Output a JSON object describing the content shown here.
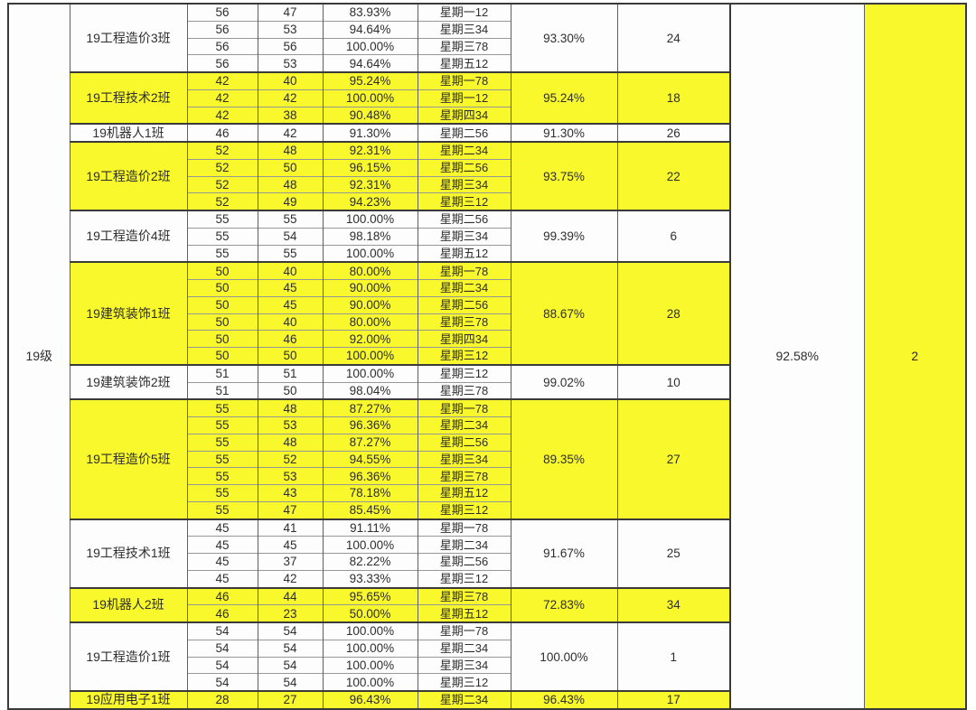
{
  "table": {
    "grade_label": "19级",
    "overall": {
      "percent": "92.58%",
      "rank": "2"
    },
    "colors": {
      "highlight": "#f8f82c",
      "cell_white": "#fdfdfd",
      "grid_major": "#3a3a3a",
      "grid_minor": "#979797"
    },
    "groups": [
      {
        "name": "19工程造价3班",
        "highlight": false,
        "avg": "93.30%",
        "count": "24",
        "rows": [
          {
            "total": "56",
            "present": "47",
            "rate": "83.93%",
            "session": "星期一12"
          },
          {
            "total": "56",
            "present": "53",
            "rate": "94.64%",
            "session": "星期三34"
          },
          {
            "total": "56",
            "present": "56",
            "rate": "100.00%",
            "session": "星期三78"
          },
          {
            "total": "56",
            "present": "53",
            "rate": "94.64%",
            "session": "星期五12"
          }
        ]
      },
      {
        "name": "19工程技术2班",
        "highlight": true,
        "avg": "95.24%",
        "count": "18",
        "rows": [
          {
            "total": "42",
            "present": "40",
            "rate": "95.24%",
            "session": "星期一78"
          },
          {
            "total": "42",
            "present": "42",
            "rate": "100.00%",
            "session": "星期一12"
          },
          {
            "total": "42",
            "present": "38",
            "rate": "90.48%",
            "session": "星期四34"
          }
        ]
      },
      {
        "name": "19机器人1班",
        "highlight": false,
        "avg": "91.30%",
        "count": "26",
        "rows": [
          {
            "total": "46",
            "present": "42",
            "rate": "91.30%",
            "session": "星期二56"
          }
        ]
      },
      {
        "name": "19工程造价2班",
        "highlight": true,
        "avg": "93.75%",
        "count": "22",
        "rows": [
          {
            "total": "52",
            "present": "48",
            "rate": "92.31%",
            "session": "星期二34"
          },
          {
            "total": "52",
            "present": "50",
            "rate": "96.15%",
            "session": "星期二56"
          },
          {
            "total": "52",
            "present": "48",
            "rate": "92.31%",
            "session": "星期三34"
          },
          {
            "total": "52",
            "present": "49",
            "rate": "94.23%",
            "session": "星期三12"
          }
        ]
      },
      {
        "name": "19工程造价4班",
        "highlight": false,
        "avg": "99.39%",
        "count": "6",
        "rows": [
          {
            "total": "55",
            "present": "55",
            "rate": "100.00%",
            "session": "星期二56"
          },
          {
            "total": "55",
            "present": "54",
            "rate": "98.18%",
            "session": "星期三34"
          },
          {
            "total": "55",
            "present": "55",
            "rate": "100.00%",
            "session": "星期五12"
          }
        ]
      },
      {
        "name": "19建筑装饰1班",
        "highlight": true,
        "avg": "88.67%",
        "count": "28",
        "rows": [
          {
            "total": "50",
            "present": "40",
            "rate": "80.00%",
            "session": "星期一78"
          },
          {
            "total": "50",
            "present": "45",
            "rate": "90.00%",
            "session": "星期二34"
          },
          {
            "total": "50",
            "present": "45",
            "rate": "90.00%",
            "session": "星期二56"
          },
          {
            "total": "50",
            "present": "40",
            "rate": "80.00%",
            "session": "星期三78"
          },
          {
            "total": "50",
            "present": "46",
            "rate": "92.00%",
            "session": "星期四34"
          },
          {
            "total": "50",
            "present": "50",
            "rate": "100.00%",
            "session": "星期三12"
          }
        ]
      },
      {
        "name": "19建筑装饰2班",
        "highlight": false,
        "avg": "99.02%",
        "count": "10",
        "rows": [
          {
            "total": "51",
            "present": "51",
            "rate": "100.00%",
            "session": "星期三12"
          },
          {
            "total": "51",
            "present": "50",
            "rate": "98.04%",
            "session": "星期三78"
          }
        ]
      },
      {
        "name": "19工程造价5班",
        "highlight": true,
        "avg": "89.35%",
        "count": "27",
        "rows": [
          {
            "total": "55",
            "present": "48",
            "rate": "87.27%",
            "session": "星期一78"
          },
          {
            "total": "55",
            "present": "53",
            "rate": "96.36%",
            "session": "星期二34"
          },
          {
            "total": "55",
            "present": "48",
            "rate": "87.27%",
            "session": "星期二56"
          },
          {
            "total": "55",
            "present": "52",
            "rate": "94.55%",
            "session": "星期三34"
          },
          {
            "total": "55",
            "present": "53",
            "rate": "96.36%",
            "session": "星期三78"
          },
          {
            "total": "55",
            "present": "43",
            "rate": "78.18%",
            "session": "星期五12"
          },
          {
            "total": "55",
            "present": "47",
            "rate": "85.45%",
            "session": "星期三12"
          }
        ]
      },
      {
        "name": "19工程技术1班",
        "highlight": false,
        "avg": "91.67%",
        "count": "25",
        "rows": [
          {
            "total": "45",
            "present": "41",
            "rate": "91.11%",
            "session": "星期一78"
          },
          {
            "total": "45",
            "present": "45",
            "rate": "100.00%",
            "session": "星期二34"
          },
          {
            "total": "45",
            "present": "37",
            "rate": "82.22%",
            "session": "星期二56"
          },
          {
            "total": "45",
            "present": "42",
            "rate": "93.33%",
            "session": "星期三12"
          }
        ]
      },
      {
        "name": "19机器人2班",
        "highlight": true,
        "avg": "72.83%",
        "count": "34",
        "rows": [
          {
            "total": "46",
            "present": "44",
            "rate": "95.65%",
            "session": "星期三78"
          },
          {
            "total": "46",
            "present": "23",
            "rate": "50.00%",
            "session": "星期五12"
          }
        ]
      },
      {
        "name": "19工程造价1班",
        "highlight": false,
        "avg": "100.00%",
        "count": "1",
        "rows": [
          {
            "total": "54",
            "present": "54",
            "rate": "100.00%",
            "session": "星期一78"
          },
          {
            "total": "54",
            "present": "54",
            "rate": "100.00%",
            "session": "星期二34"
          },
          {
            "total": "54",
            "present": "54",
            "rate": "100.00%",
            "session": "星期三34"
          },
          {
            "total": "54",
            "present": "54",
            "rate": "100.00%",
            "session": "星期三12"
          }
        ]
      },
      {
        "name": "19应用电子1班",
        "highlight": true,
        "avg": "96.43%",
        "count": "17",
        "rows": [
          {
            "total": "28",
            "present": "27",
            "rate": "96.43%",
            "session": "星期二34"
          }
        ]
      }
    ]
  }
}
